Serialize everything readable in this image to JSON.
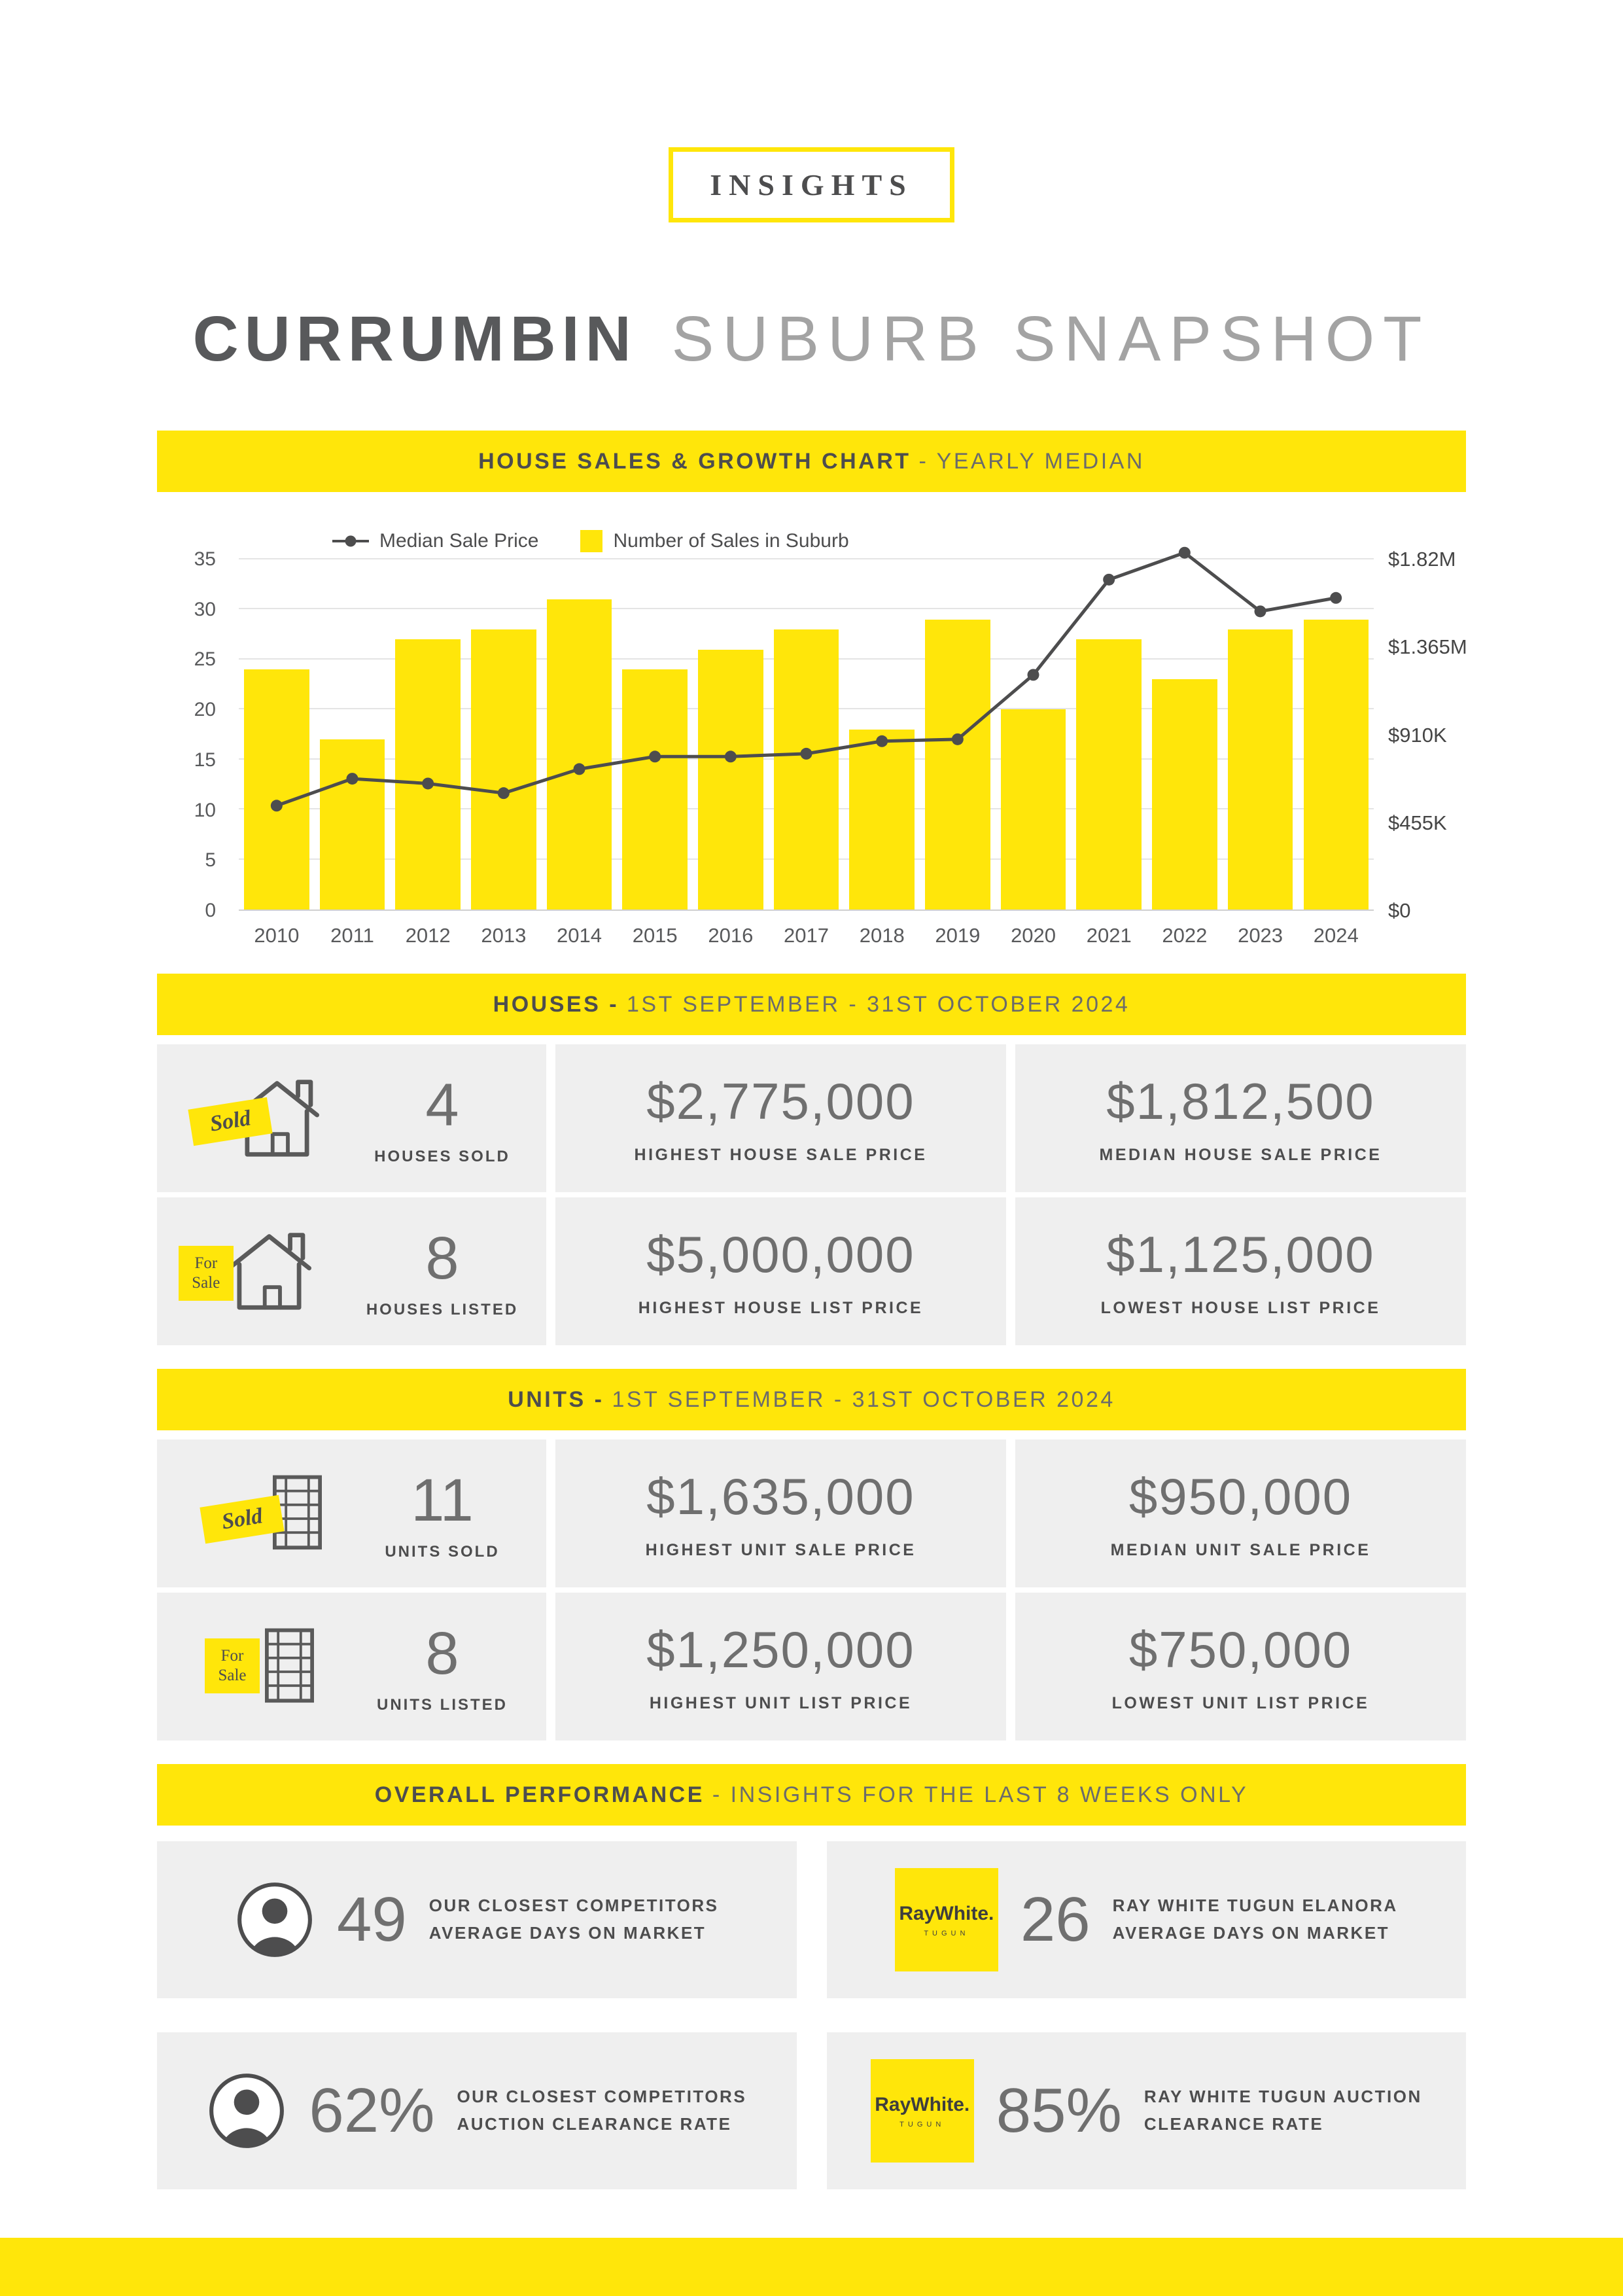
{
  "colors": {
    "accent_yellow": "#FFE60A",
    "line_color": "#4D4D4E",
    "card_background": "#EFEFEF"
  },
  "header": {
    "logo_text": "INSIGHTS",
    "title_bold": "CURRUMBIN",
    "title_light": "SUBURB SNAPSHOT"
  },
  "chart_section": {
    "banner_bold": "HOUSE SALES & GROWTH CHART",
    "banner_light": "- YEARLY MEDIAN",
    "legend": {
      "line_label": "Median Sale Price",
      "bar_label": "Number of Sales in Suburb"
    }
  },
  "chart_data": {
    "type": "bar+line",
    "categories": [
      "2010",
      "2011",
      "2012",
      "2013",
      "2014",
      "2015",
      "2016",
      "2017",
      "2018",
      "2019",
      "2020",
      "2021",
      "2022",
      "2023",
      "2024"
    ],
    "series": [
      {
        "name": "Number of Sales in Suburb",
        "type": "bar",
        "axis": "left",
        "values": [
          24,
          17,
          27,
          28,
          31,
          24,
          26,
          28,
          18,
          29,
          20,
          27,
          23,
          28,
          29
        ]
      },
      {
        "name": "Median Sale Price",
        "type": "line",
        "axis": "right",
        "values": [
          540000,
          680000,
          655000,
          605000,
          730000,
          795000,
          795000,
          810000,
          875000,
          885000,
          1220000,
          1715000,
          1855000,
          1550000,
          1620000
        ]
      }
    ],
    "left_axis": {
      "ticks": [
        0,
        5,
        10,
        15,
        20,
        25,
        30,
        35
      ],
      "min": 0,
      "max": 35
    },
    "right_axis": {
      "tick_labels": [
        "$0",
        "$455K",
        "$910K",
        "$1.365M",
        "$1.82M"
      ],
      "min": 0,
      "max": 1820000
    },
    "legend_position": "top-left",
    "grid": true
  },
  "houses_section": {
    "banner_bold": "HOUSES -",
    "banner_light": "1ST SEPTEMBER - 31ST OCTOBER 2024",
    "rows": [
      {
        "icon": "house-sold",
        "tag": "Sold",
        "count": "4",
        "count_label": "HOUSES SOLD",
        "stats": [
          {
            "value": "$2,775,000",
            "label": "HIGHEST HOUSE SALE PRICE"
          },
          {
            "value": "$1,812,500",
            "label": "MEDIAN HOUSE SALE PRICE"
          }
        ]
      },
      {
        "icon": "house-for-sale",
        "tag": "For Sale",
        "count": "8",
        "count_label": "HOUSES LISTED",
        "stats": [
          {
            "value": "$5,000,000",
            "label": "HIGHEST HOUSE LIST PRICE"
          },
          {
            "value": "$1,125,000",
            "label": "LOWEST HOUSE LIST PRICE"
          }
        ]
      }
    ]
  },
  "units_section": {
    "banner_bold": "UNITS -",
    "banner_light": "1ST SEPTEMBER - 31ST OCTOBER 2024",
    "rows": [
      {
        "icon": "unit-sold",
        "tag": "Sold",
        "count": "11",
        "count_label": "UNITS SOLD",
        "stats": [
          {
            "value": "$1,635,000",
            "label": "HIGHEST UNIT SALE PRICE"
          },
          {
            "value": "$950,000",
            "label": "MEDIAN UNIT SALE PRICE"
          }
        ]
      },
      {
        "icon": "unit-for-sale",
        "tag": "For Sale",
        "count": "8",
        "count_label": "UNITS LISTED",
        "stats": [
          {
            "value": "$1,250,000",
            "label": "HIGHEST UNIT LIST PRICE"
          },
          {
            "value": "$750,000",
            "label": "LOWEST UNIT LIST PRICE"
          }
        ]
      }
    ]
  },
  "performance_section": {
    "banner_bold": "OVERALL PERFORMANCE",
    "banner_light": "- INSIGHTS FOR THE LAST 8 WEEKS ONLY",
    "raywhite_brand": "RayWhite.",
    "raywhite_sub": "TUGUN",
    "cards": [
      {
        "icon": "person",
        "value": "49",
        "label_line1": "OUR CLOSEST COMPETITORS",
        "label_line2": "AVERAGE DAYS ON MARKET"
      },
      {
        "icon": "raywhite-logo",
        "value": "26",
        "label_line1": "RAY WHITE TUGUN ELANORA",
        "label_line2": "AVERAGE DAYS ON MARKET"
      },
      {
        "icon": "person",
        "value": "62%",
        "label_line1": "OUR CLOSEST COMPETITORS",
        "label_line2": "AUCTION CLEARANCE RATE"
      },
      {
        "icon": "raywhite-logo",
        "value": "85%",
        "label_line1": "RAY WHITE TUGUN AUCTION",
        "label_line2": "CLEARANCE RATE"
      }
    ]
  }
}
